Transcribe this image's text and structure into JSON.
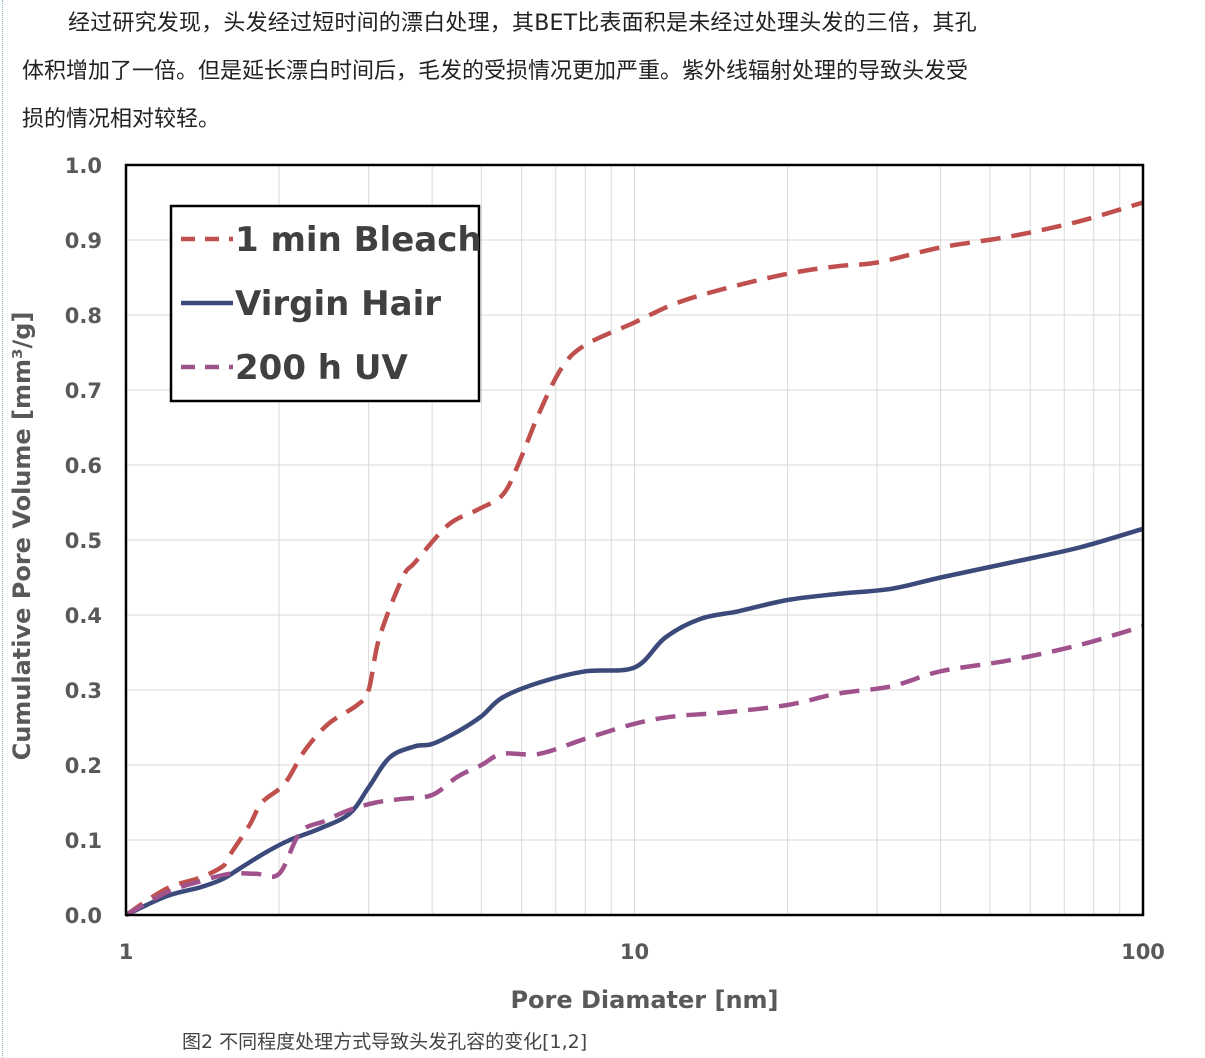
{
  "article": {
    "paragraph_lines": [
      "经过研究发现，头发经过短时间的漂白处理，其BET比表面积是未经过处理头发的三倍，其孔",
      "体积增加了一倍。但是延长漂白时间后，毛发的受损情况更加严重。紫外线辐射处理的导致头发受",
      "损的情况相对较轻。"
    ],
    "caption": "图2   不同程度处理方式导致头发孔容的变化[1,2]"
  },
  "chart_data": {
    "type": "line",
    "x_scale": "log",
    "xlabel": "Pore Diamater [nm]",
    "ylabel": "Cumulative Pore Volume [mm³/g]",
    "xlim": [
      1,
      100
    ],
    "ylim": [
      0,
      1.0
    ],
    "x_ticks": [
      "1",
      "10",
      "100"
    ],
    "y_ticks": [
      "0.0",
      "0.1",
      "0.2",
      "0.3",
      "0.4",
      "0.5",
      "0.6",
      "0.7",
      "0.8",
      "0.9",
      "1.0"
    ],
    "grid": true,
    "legend_position": "top-left",
    "series": [
      {
        "name": "1 min Bleach",
        "color": "#c0504d",
        "style": "dashed",
        "x": [
          1,
          1.2,
          1.4,
          1.55,
          1.6,
          1.75,
          1.85,
          2.05,
          2.25,
          2.5,
          2.85,
          3.0,
          3.15,
          3.5,
          3.7,
          4.3,
          4.9,
          5.5,
          5.9,
          6.5,
          7.2,
          8.0,
          10.0,
          12.0,
          15.0,
          20.0,
          25.0,
          30.0,
          40.0,
          55.0,
          75.0,
          100.0
        ],
        "y": [
          0,
          0.035,
          0.05,
          0.065,
          0.08,
          0.12,
          0.15,
          0.175,
          0.22,
          0.255,
          0.28,
          0.3,
          0.37,
          0.45,
          0.47,
          0.52,
          0.54,
          0.56,
          0.6,
          0.67,
          0.73,
          0.76,
          0.79,
          0.815,
          0.835,
          0.855,
          0.865,
          0.87,
          0.89,
          0.905,
          0.925,
          0.95
        ]
      },
      {
        "name": "Virgin Hair",
        "color": "#3b4a7a",
        "style": "solid",
        "x": [
          1,
          1.2,
          1.4,
          1.55,
          1.7,
          1.9,
          2.1,
          2.4,
          2.75,
          3.0,
          3.3,
          3.7,
          4.0,
          4.5,
          5.0,
          5.5,
          6.5,
          8.0,
          10.0,
          11.5,
          13.5,
          16.0,
          20.0,
          25.0,
          32.0,
          40.0,
          55.0,
          75.0,
          100.0
        ],
        "y": [
          0,
          0.025,
          0.037,
          0.048,
          0.065,
          0.085,
          0.1,
          0.115,
          0.135,
          0.17,
          0.21,
          0.225,
          0.228,
          0.245,
          0.265,
          0.29,
          0.31,
          0.325,
          0.33,
          0.37,
          0.395,
          0.405,
          0.42,
          0.428,
          0.435,
          0.45,
          0.47,
          0.49,
          0.515
        ]
      },
      {
        "name": "200 h UV",
        "color": "#a0528c",
        "style": "dashed",
        "x": [
          1,
          1.2,
          1.4,
          1.6,
          1.8,
          2.0,
          2.2,
          2.45,
          2.75,
          3.1,
          3.5,
          4.0,
          4.5,
          5.0,
          5.5,
          6.5,
          8.0,
          10.0,
          12.0,
          15.0,
          20.0,
          25.0,
          32.0,
          40.0,
          55.0,
          75.0,
          100.0
        ],
        "y": [
          0,
          0.03,
          0.045,
          0.055,
          0.055,
          0.055,
          0.11,
          0.125,
          0.14,
          0.15,
          0.155,
          0.16,
          0.185,
          0.2,
          0.215,
          0.215,
          0.235,
          0.255,
          0.265,
          0.27,
          0.28,
          0.295,
          0.305,
          0.325,
          0.34,
          0.36,
          0.385
        ]
      }
    ]
  }
}
